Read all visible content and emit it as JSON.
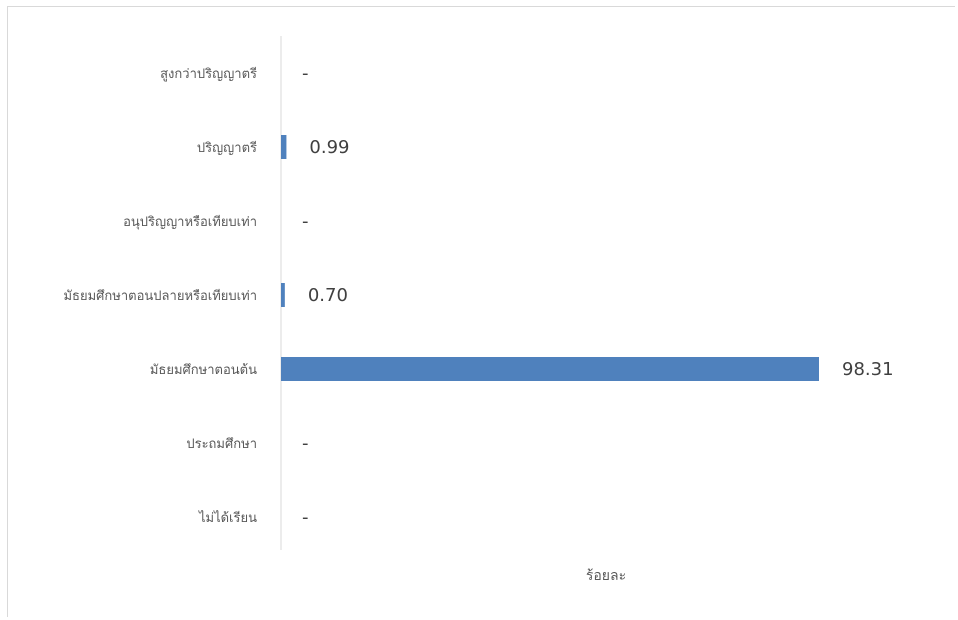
{
  "chart_data": {
    "type": "bar",
    "orientation": "horizontal",
    "categories": [
      "สูงกว่าปริญญาตรี",
      "ปริญญาตรี",
      "อนุปริญญาหรือเทียบเท่า",
      "มัธยมศึกษาตอนปลายหรือเทียบเท่า",
      "มัธยมศึกษาตอนต้น",
      "ประถมศึกษา",
      "ไม่ได้เรียน"
    ],
    "values": [
      0,
      0.99,
      0,
      0.7,
      98.31,
      0,
      0
    ],
    "data_labels": [
      "-",
      "0.99",
      "-",
      "0.70",
      "98.31",
      "-",
      "-"
    ],
    "xlabel": "ร้อยละ",
    "ylabel": "",
    "xlim": [
      0,
      100
    ],
    "bar_color": "#4f81bd",
    "grid": false
  }
}
